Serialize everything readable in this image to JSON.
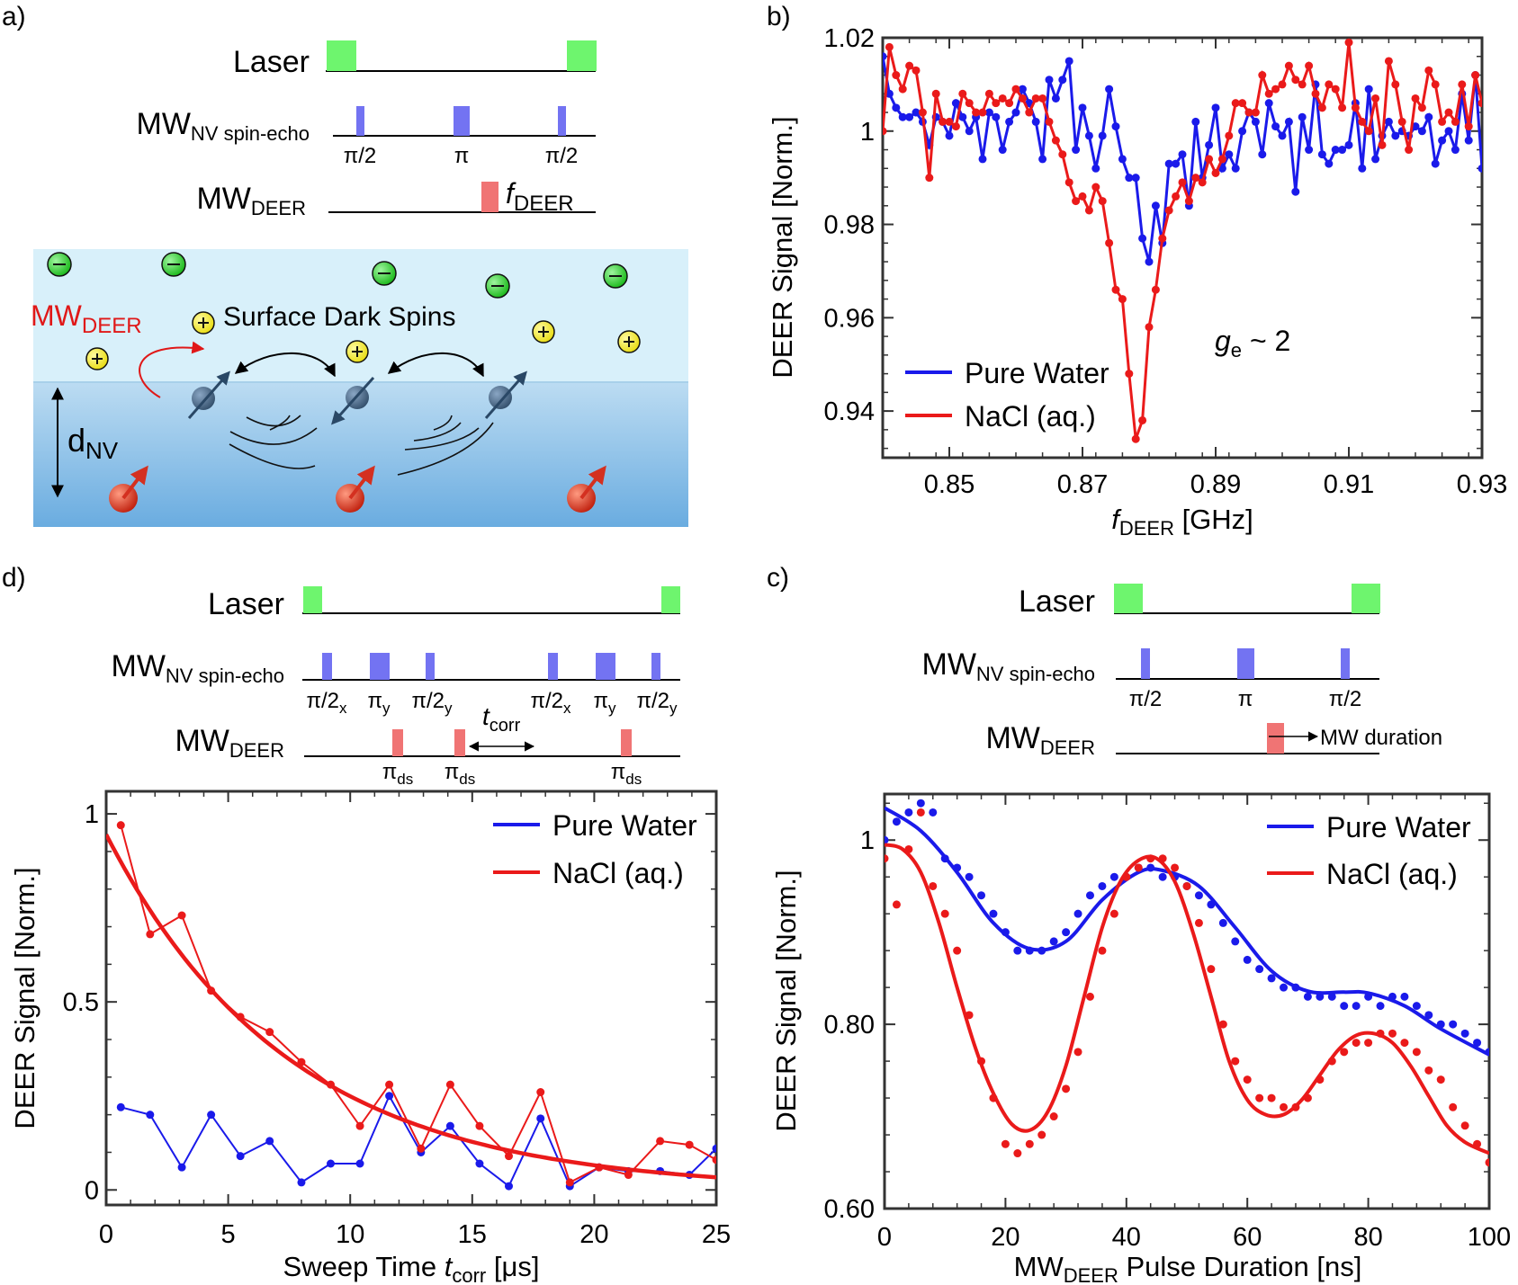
{
  "panel_labels": {
    "a": "a)",
    "b": "b)",
    "c": "c)",
    "d": "d)"
  },
  "colors": {
    "laser": "#6ef56e",
    "mw_nv": "#7373f2",
    "mw_deer": "#f07474",
    "blue": "#1a1aea",
    "red": "#ea1a1a",
    "water_top": "#d8f0fa",
    "water_bottom_top": "#bcdcf2",
    "water_bottom_bottom": "#6aace0",
    "neg_ion": "#22cc22",
    "pos_ion": "#f2ea22",
    "dark_spin": "#3e5a78",
    "nv_spin": "#d43020"
  },
  "pulse_a": {
    "laser_label": "Laser",
    "mw_nv_label": "MW",
    "mw_nv_sub": "NV spin-echo",
    "mw_deer_label": "MW",
    "mw_deer_sub": "DEER",
    "pulse_labels": [
      "π/2",
      "π",
      "π/2"
    ],
    "f_label": "f",
    "f_sub": "DEER"
  },
  "schematic": {
    "title": "Surface Dark Spins",
    "mw_label": "MW",
    "mw_sub": "DEER",
    "d_label": "d",
    "d_sub": "NV",
    "ion_neg_symbol": "−",
    "ion_pos_symbol": "+",
    "icons": [
      "negative-ion-icon",
      "positive-ion-icon",
      "dark-spin-icon",
      "nv-spin-icon"
    ]
  },
  "pulse_d": {
    "laser_label": "Laser",
    "mw_nv_label": "MW",
    "mw_nv_sub": "NV spin-echo",
    "mw_deer_label": "MW",
    "mw_deer_sub": "DEER",
    "nv_pulses": [
      {
        "main": "π/2",
        "sub": "x"
      },
      {
        "main": "π",
        "sub": "y"
      },
      {
        "main": "π/2",
        "sub": "y"
      },
      {
        "main": "π/2",
        "sub": "x"
      },
      {
        "main": "π",
        "sub": "y"
      },
      {
        "main": "π/2",
        "sub": "y"
      }
    ],
    "ds_main": "π",
    "ds_sub": "ds",
    "tcorr_main": "t",
    "tcorr_sub": "corr"
  },
  "pulse_c": {
    "laser_label": "Laser",
    "mw_nv_label": "MW",
    "mw_nv_sub": "NV spin-echo",
    "mw_deer_label": "MW",
    "mw_deer_sub": "DEER",
    "pulse_labels": [
      "π/2",
      "π",
      "π/2"
    ],
    "duration_label": "MW duration"
  },
  "chart_data": [
    {
      "id": "b",
      "type": "line",
      "ylabel": "DEER Signal [Norm.]",
      "xlabel_main": "f",
      "xlabel_sub": "DEER",
      "xlabel_rest": " [GHz]",
      "xlim": [
        0.84,
        0.93
      ],
      "ylim": [
        0.93,
        1.02
      ],
      "xticks": [
        0.85,
        0.87,
        0.89,
        0.91,
        0.93
      ],
      "xtick_labels": [
        "0.85",
        "0.87",
        "0.89",
        "0.91",
        "0.93"
      ],
      "yticks": [
        0.94,
        0.96,
        0.98,
        1.0,
        1.02
      ],
      "ytick_labels": [
        "0.94",
        "0.96",
        "0.98",
        "1",
        "1.02"
      ],
      "annotation": {
        "main": "g",
        "sub": "e",
        "rest": " ~ 2"
      },
      "legend": [
        "Pure Water",
        "NaCl (aq.)"
      ],
      "legend_position": "bottom-left",
      "series": [
        {
          "name": "Pure Water",
          "color": "#1a1aea",
          "x": [
            0.84,
            0.841,
            0.842,
            0.843,
            0.844,
            0.845,
            0.846,
            0.847,
            0.848,
            0.849,
            0.85,
            0.851,
            0.852,
            0.853,
            0.854,
            0.855,
            0.856,
            0.857,
            0.858,
            0.859,
            0.86,
            0.861,
            0.862,
            0.863,
            0.864,
            0.865,
            0.866,
            0.867,
            0.868,
            0.869,
            0.87,
            0.871,
            0.872,
            0.873,
            0.874,
            0.875,
            0.876,
            0.877,
            0.878,
            0.879,
            0.88,
            0.881,
            0.882,
            0.883,
            0.884,
            0.885,
            0.886,
            0.887,
            0.888,
            0.889,
            0.89,
            0.891,
            0.892,
            0.893,
            0.894,
            0.895,
            0.896,
            0.897,
            0.898,
            0.899,
            0.9,
            0.901,
            0.902,
            0.903,
            0.904,
            0.905,
            0.906,
            0.907,
            0.908,
            0.909,
            0.91,
            0.911,
            0.912,
            0.913,
            0.914,
            0.915,
            0.916,
            0.917,
            0.918,
            0.919,
            0.92,
            0.921,
            0.922,
            0.923,
            0.924,
            0.925,
            0.926,
            0.927,
            0.928,
            0.929,
            0.93
          ],
          "y": [
            1.016,
            1.008,
            1.005,
            1.003,
            1.003,
            1.004,
            1.002,
            0.997,
            1.003,
            1.002,
            0.999,
            1.006,
            1.003,
            1.0,
            1.003,
            0.994,
            1.004,
            1.003,
            0.996,
            1.002,
            1.004,
            1.009,
            1.006,
            1.002,
            0.994,
            1.011,
            1.007,
            1.011,
            1.015,
            0.996,
            1.005,
            0.999,
            0.992,
            0.999,
            1.009,
            1.001,
            0.994,
            0.99,
            0.99,
            0.977,
            0.972,
            0.984,
            0.976,
            0.993,
            0.993,
            0.995,
            0.984,
            1.002,
            0.99,
            0.997,
            1.005,
            0.992,
            0.995,
            0.992,
            1.0,
            1.004,
            1.002,
            0.995,
            1.006,
            1.001,
            0.999,
            1.002,
            0.987,
            1.003,
            0.996,
            1.01,
            0.995,
            0.993,
            0.996,
            0.996,
            0.997,
            1.006,
            0.992,
            1.009,
            0.994,
            0.999,
            1.002,
            0.999,
            1.0,
            0.999,
            1.001,
            1.0,
            1.003,
            0.993,
            0.998,
            1.0,
            0.996,
            1.008,
            0.998,
            1.012,
            0.992
          ]
        },
        {
          "name": "NaCl (aq.)",
          "color": "#ea1a1a",
          "x": [
            0.84,
            0.841,
            0.842,
            0.843,
            0.844,
            0.845,
            0.846,
            0.847,
            0.848,
            0.849,
            0.85,
            0.851,
            0.852,
            0.853,
            0.854,
            0.855,
            0.856,
            0.857,
            0.858,
            0.859,
            0.86,
            0.861,
            0.862,
            0.863,
            0.864,
            0.865,
            0.866,
            0.867,
            0.868,
            0.869,
            0.87,
            0.871,
            0.872,
            0.873,
            0.874,
            0.875,
            0.876,
            0.877,
            0.878,
            0.879,
            0.88,
            0.881,
            0.882,
            0.883,
            0.884,
            0.885,
            0.886,
            0.887,
            0.888,
            0.889,
            0.89,
            0.891,
            0.892,
            0.893,
            0.894,
            0.895,
            0.896,
            0.897,
            0.898,
            0.899,
            0.9,
            0.901,
            0.902,
            0.903,
            0.904,
            0.905,
            0.906,
            0.907,
            0.908,
            0.909,
            0.91,
            0.911,
            0.912,
            0.913,
            0.914,
            0.915,
            0.916,
            0.917,
            0.918,
            0.919,
            0.92,
            0.921,
            0.922,
            0.923,
            0.924,
            0.925,
            0.926,
            0.927,
            0.928,
            0.929,
            0.93
          ],
          "y": [
            1.0,
            1.018,
            1.012,
            1.009,
            1.014,
            1.013,
            1.004,
            0.99,
            1.008,
            1.002,
            1.002,
            1.001,
            1.008,
            1.006,
            1.004,
            1.004,
            1.008,
            1.006,
            1.007,
            1.006,
            1.009,
            1.007,
            1.004,
            1.007,
            1.007,
            1.002,
            0.998,
            0.995,
            0.989,
            0.985,
            0.986,
            0.983,
            0.988,
            0.985,
            0.976,
            0.966,
            0.964,
            0.948,
            0.934,
            0.938,
            0.958,
            0.966,
            0.977,
            0.983,
            0.986,
            0.989,
            0.985,
            0.99,
            0.989,
            0.994,
            0.991,
            0.994,
            0.999,
            1.006,
            1.006,
            1.004,
            1.004,
            1.012,
            1.008,
            1.009,
            1.01,
            1.014,
            1.011,
            1.01,
            1.014,
            1.008,
            1.005,
            1.01,
            1.009,
            1.005,
            1.019,
            1.005,
            1.002,
            1.0,
            1.007,
            0.997,
            1.015,
            1.01,
            1.002,
            0.996,
            1.007,
            1.005,
            1.013,
            1.01,
            1.002,
            1.004,
            1.002,
            1.01,
            1.001,
            1.012,
            1.006
          ]
        }
      ]
    },
    {
      "id": "d",
      "type": "line",
      "ylabel": "DEER Signal [Norm.]",
      "xlabel_main": "Sweep Time ",
      "xlabel_it": "t",
      "xlabel_sub": "corr",
      "xlabel_rest": " [μs]",
      "xlim": [
        0,
        25
      ],
      "ylim": [
        -0.04,
        1.06
      ],
      "xticks": [
        0,
        5,
        10,
        15,
        20,
        25
      ],
      "xtick_labels": [
        "0",
        "5",
        "10",
        "15",
        "20",
        "25"
      ],
      "yticks": [
        0,
        0.5,
        1
      ],
      "ytick_labels": [
        "0",
        "0.5",
        "1"
      ],
      "legend": [
        "Pure Water",
        "NaCl (aq.)"
      ],
      "legend_position": "top-right",
      "series": [
        {
          "name": "Pure Water",
          "color": "#1a1aea",
          "x": [
            0.6,
            1.8,
            3.1,
            4.3,
            5.5,
            6.7,
            8.0,
            9.2,
            10.4,
            11.6,
            12.9,
            14.1,
            15.3,
            16.5,
            17.8,
            19.0,
            20.2,
            21.4,
            22.7,
            23.9,
            25.0
          ],
          "y": [
            0.22,
            0.2,
            0.06,
            0.2,
            0.09,
            0.13,
            0.02,
            0.07,
            0.07,
            0.25,
            0.1,
            0.17,
            0.07,
            0.01,
            0.19,
            0.01,
            0.06,
            0.05,
            0.05,
            0.04,
            0.11
          ]
        },
        {
          "name": "NaCl (aq.)",
          "color": "#ea1a1a",
          "x": [
            0.6,
            1.8,
            3.1,
            4.3,
            5.5,
            6.7,
            8.0,
            9.2,
            10.4,
            11.6,
            12.9,
            14.1,
            15.3,
            16.5,
            17.8,
            19.0,
            20.2,
            21.4,
            22.7,
            23.9,
            25.0
          ],
          "y": [
            0.97,
            0.68,
            0.73,
            0.53,
            0.46,
            0.42,
            0.34,
            0.28,
            0.17,
            0.28,
            0.11,
            0.28,
            0.17,
            0.09,
            0.26,
            0.02,
            0.06,
            0.04,
            0.13,
            0.12,
            0.08
          ]
        },
        {
          "name": "NaCl fit",
          "color": "#ea1a1a",
          "fit": "exp",
          "amplitude": 0.945,
          "tau": 7.5,
          "xrange": [
            0,
            25
          ]
        }
      ]
    },
    {
      "id": "c",
      "type": "scatter",
      "ylabel": "DEER Signal [Norm.]",
      "xlabel_main": "MW",
      "xlabel_sub": "DEER",
      "xlabel_rest": " Pulse Duration [ns]",
      "xlim": [
        0,
        100
      ],
      "ylim": [
        0.6,
        1.05
      ],
      "xticks": [
        0,
        20,
        40,
        60,
        80,
        100
      ],
      "xtick_labels": [
        "0",
        "20",
        "40",
        "60",
        "80",
        "100"
      ],
      "yticks": [
        0.6,
        0.8,
        1.0
      ],
      "ytick_labels": [
        "0.60",
        "0.80",
        "1"
      ],
      "legend": [
        "Pure Water",
        "NaCl (aq.)"
      ],
      "legend_position": "top-right",
      "series": [
        {
          "name": "Pure Water",
          "color": "#1a1aea",
          "x": [
            0,
            2,
            4,
            6,
            8,
            10,
            12,
            14,
            16,
            18,
            20,
            22,
            24,
            26,
            28,
            30,
            32,
            34,
            36,
            38,
            40,
            42,
            44,
            46,
            48,
            50,
            52,
            54,
            56,
            58,
            60,
            62,
            64,
            66,
            68,
            70,
            72,
            74,
            76,
            78,
            80,
            82,
            84,
            86,
            88,
            90,
            92,
            94,
            96,
            98,
            100
          ],
          "y": [
            1.0,
            1.02,
            1.03,
            1.04,
            1.03,
            0.98,
            0.97,
            0.96,
            0.94,
            0.92,
            0.9,
            0.88,
            0.88,
            0.88,
            0.89,
            0.9,
            0.92,
            0.94,
            0.95,
            0.96,
            0.96,
            0.97,
            0.97,
            0.96,
            0.96,
            0.95,
            0.94,
            0.93,
            0.91,
            0.89,
            0.87,
            0.86,
            0.85,
            0.84,
            0.84,
            0.83,
            0.83,
            0.83,
            0.82,
            0.82,
            0.83,
            0.82,
            0.83,
            0.83,
            0.82,
            0.81,
            0.8,
            0.8,
            0.79,
            0.78,
            0.77
          ]
        },
        {
          "name": "Pure Water fit",
          "color": "#1a1aea",
          "fit": "smooth",
          "x": [
            0,
            6,
            12,
            18,
            24,
            30,
            36,
            42,
            46,
            52,
            58,
            64,
            70,
            76,
            80,
            86,
            92,
            100
          ],
          "y": [
            1.035,
            1.01,
            0.965,
            0.91,
            0.882,
            0.89,
            0.935,
            0.965,
            0.967,
            0.95,
            0.905,
            0.858,
            0.836,
            0.835,
            0.834,
            0.82,
            0.795,
            0.767
          ]
        },
        {
          "name": "NaCl (aq.)",
          "color": "#ea1a1a",
          "x": [
            0,
            2,
            4,
            6,
            8,
            10,
            12,
            14,
            16,
            18,
            20,
            22,
            24,
            26,
            28,
            30,
            32,
            34,
            36,
            38,
            40,
            42,
            44,
            46,
            48,
            50,
            52,
            54,
            56,
            58,
            60,
            62,
            64,
            66,
            68,
            70,
            72,
            74,
            76,
            78,
            80,
            82,
            84,
            86,
            88,
            90,
            92,
            94,
            96,
            98,
            100
          ],
          "y": [
            0.98,
            0.93,
            0.99,
            1.03,
            0.95,
            0.92,
            0.88,
            0.81,
            0.76,
            0.72,
            0.67,
            0.66,
            0.67,
            0.68,
            0.7,
            0.73,
            0.77,
            0.83,
            0.88,
            0.92,
            0.96,
            0.97,
            0.98,
            0.98,
            0.97,
            0.95,
            0.91,
            0.86,
            0.8,
            0.76,
            0.74,
            0.72,
            0.72,
            0.71,
            0.71,
            0.72,
            0.74,
            0.76,
            0.77,
            0.78,
            0.78,
            0.79,
            0.79,
            0.78,
            0.77,
            0.75,
            0.74,
            0.71,
            0.69,
            0.67,
            0.65
          ]
        },
        {
          "name": "NaCl fit",
          "color": "#ea1a1a",
          "fit": "smooth",
          "x": [
            0,
            3,
            6,
            9,
            12,
            15,
            18,
            21,
            24,
            27,
            30,
            33,
            36,
            39,
            42,
            45,
            48,
            51,
            54,
            57,
            60,
            63,
            66,
            69,
            72,
            75,
            78,
            81,
            84,
            87,
            90,
            93,
            96,
            100
          ],
          "y": [
            0.995,
            0.99,
            0.965,
            0.91,
            0.84,
            0.775,
            0.725,
            0.692,
            0.685,
            0.705,
            0.755,
            0.83,
            0.905,
            0.955,
            0.978,
            0.98,
            0.955,
            0.9,
            0.83,
            0.76,
            0.718,
            0.702,
            0.702,
            0.718,
            0.745,
            0.772,
            0.788,
            0.79,
            0.78,
            0.755,
            0.722,
            0.69,
            0.672,
            0.66
          ]
        }
      ]
    }
  ]
}
